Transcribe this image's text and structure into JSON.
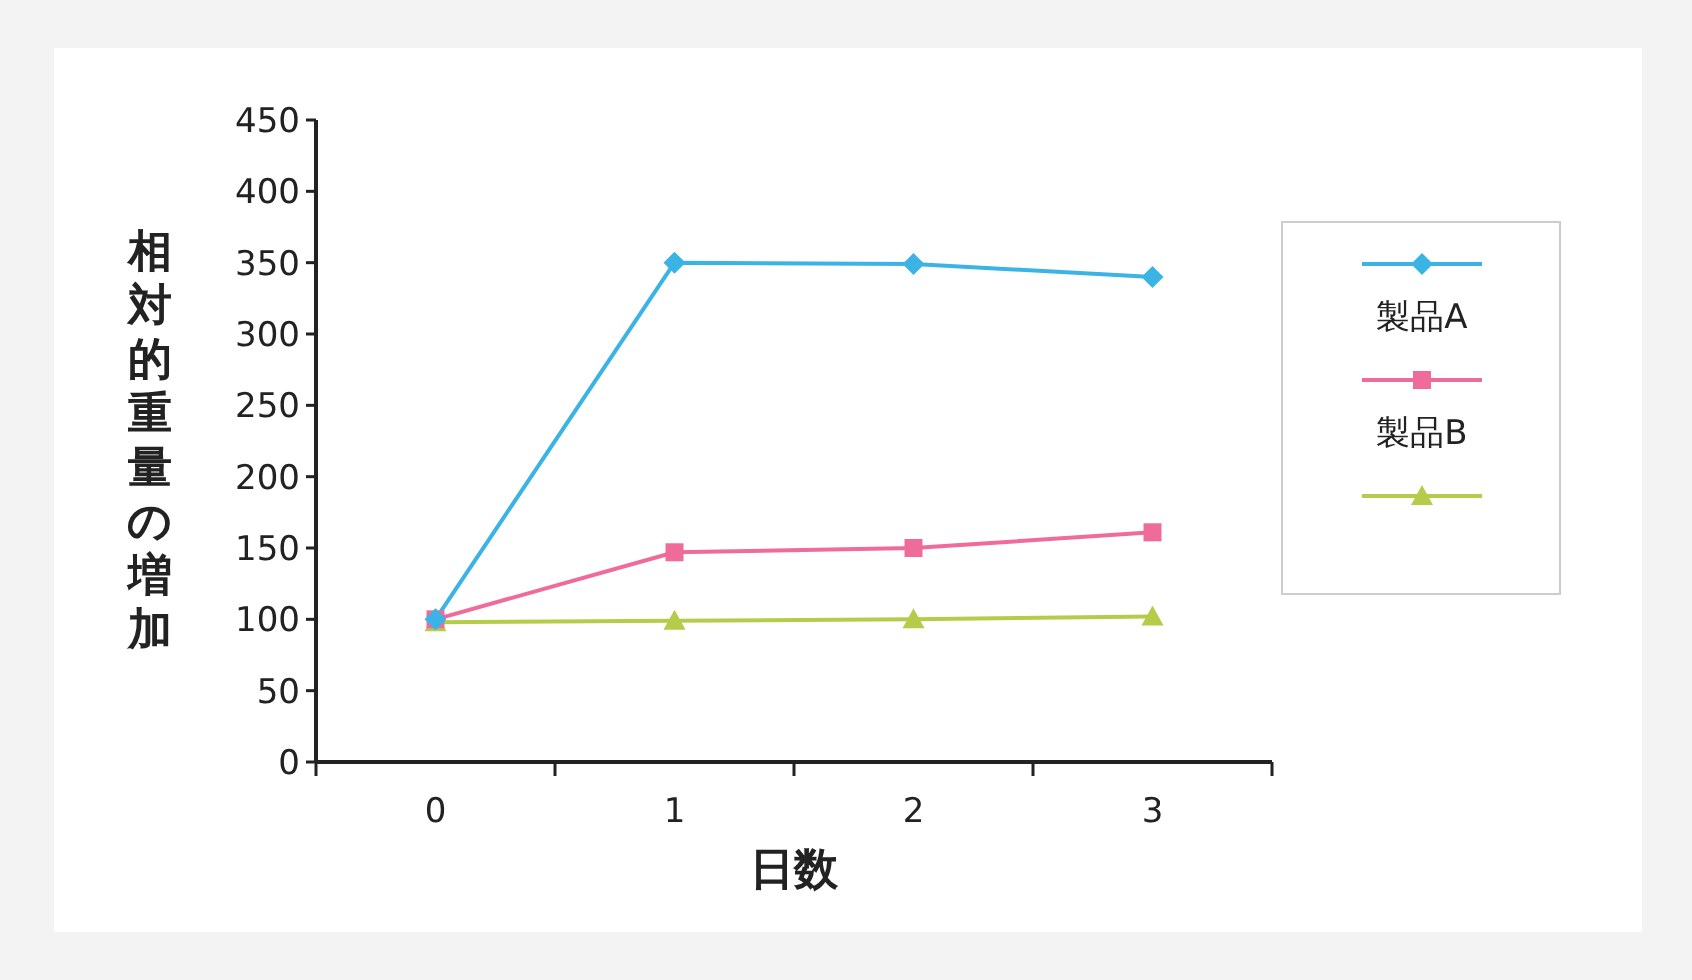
{
  "chart_data": {
    "type": "line",
    "xlabel": "日数",
    "ylabel": "相対的重量の増加",
    "categories": [
      "0",
      "1",
      "2",
      "3"
    ],
    "series": [
      {
        "name": "製品A",
        "color": "#3bb4e5",
        "marker": "diamond",
        "values": [
          100,
          350,
          349,
          340
        ]
      },
      {
        "name": "製品B",
        "color": "#ef6b9a",
        "marker": "square",
        "values": [
          100,
          147,
          150,
          161
        ]
      },
      {
        "color": "#b5cc4a",
        "marker": "triangle",
        "values": [
          98,
          99,
          100,
          102
        ]
      }
    ],
    "ylim": [
      0,
      450
    ],
    "yticks": [
      0,
      50,
      100,
      150,
      200,
      250,
      300,
      350,
      400,
      450
    ],
    "grid": false,
    "legend": "right",
    "line_style": "solid"
  }
}
